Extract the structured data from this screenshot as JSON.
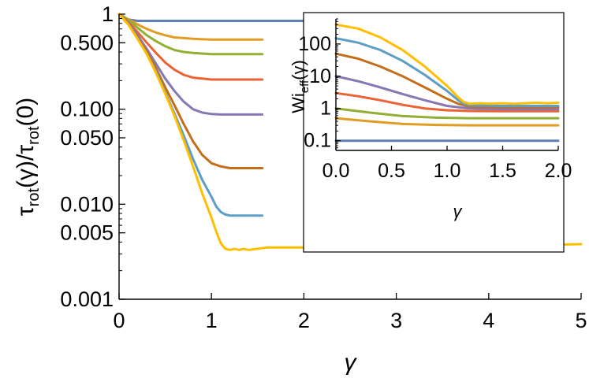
{
  "chart_data": [
    {
      "type": "line",
      "role": "main",
      "xlabel": "γ",
      "ylabel": "τrot(γ)/τrot(0)",
      "ylabel_parts": {
        "t1": "τ",
        "s1": "rot",
        "m": "(γ)/τ",
        "s2": "rot",
        "e": "(0)"
      },
      "x_scale": "linear",
      "y_scale": "log",
      "xlim": [
        0,
        5
      ],
      "ylim": [
        0.001,
        1
      ],
      "x_ticks": [
        0,
        1,
        2,
        3,
        4,
        5
      ],
      "x_tick_labels": [
        "0",
        "1",
        "2",
        "3",
        "4",
        "5"
      ],
      "y_ticks": [
        1,
        0.5,
        0.1,
        0.05,
        0.01,
        0.005,
        0.001
      ],
      "y_tick_labels": [
        "1",
        "0.500",
        "0.100",
        "0.050",
        "0.010",
        "0.005",
        "0.001"
      ],
      "series": [
        {
          "name": "s1",
          "color": "#5E81B5",
          "x": [
            0,
            0.1,
            0.2,
            0.3,
            2.0
          ],
          "y": [
            1,
            0.88,
            0.85,
            0.85,
            0.85
          ]
        },
        {
          "name": "s2",
          "color": "#E19C24",
          "x": [
            0,
            0.1,
            0.2,
            0.3,
            0.4,
            0.5,
            0.6,
            0.8,
            1.0,
            1.55
          ],
          "y": [
            1,
            0.88,
            0.78,
            0.7,
            0.64,
            0.6,
            0.57,
            0.55,
            0.54,
            0.54
          ]
        },
        {
          "name": "s3",
          "color": "#8FB032",
          "x": [
            0,
            0.1,
            0.2,
            0.3,
            0.4,
            0.5,
            0.6,
            0.7,
            0.8,
            1.0,
            1.55
          ],
          "y": [
            1,
            0.86,
            0.72,
            0.6,
            0.52,
            0.46,
            0.42,
            0.4,
            0.39,
            0.38,
            0.38
          ]
        },
        {
          "name": "s4",
          "color": "#EB6235",
          "x": [
            0,
            0.1,
            0.2,
            0.3,
            0.4,
            0.5,
            0.6,
            0.7,
            0.8,
            0.9,
            1.0,
            1.55
          ],
          "y": [
            1,
            0.82,
            0.65,
            0.5,
            0.39,
            0.31,
            0.26,
            0.23,
            0.215,
            0.21,
            0.205,
            0.205
          ]
        },
        {
          "name": "s5",
          "color": "#8778B3",
          "x": [
            0,
            0.1,
            0.2,
            0.3,
            0.4,
            0.5,
            0.6,
            0.7,
            0.8,
            0.9,
            1.0,
            1.1,
            1.55
          ],
          "y": [
            1,
            0.8,
            0.6,
            0.43,
            0.3,
            0.21,
            0.155,
            0.12,
            0.1,
            0.092,
            0.089,
            0.088,
            0.088
          ]
        },
        {
          "name": "s6",
          "color": "#C56E1A",
          "x": [
            0,
            0.1,
            0.2,
            0.3,
            0.4,
            0.5,
            0.6,
            0.7,
            0.8,
            0.9,
            1.0,
            1.1,
            1.2,
            1.3,
            1.55
          ],
          "y": [
            1,
            0.78,
            0.57,
            0.4,
            0.27,
            0.17,
            0.11,
            0.07,
            0.046,
            0.033,
            0.027,
            0.025,
            0.024,
            0.024,
            0.024
          ]
        },
        {
          "name": "s7",
          "color": "#5D9EC7",
          "x": [
            0,
            0.1,
            0.2,
            0.3,
            0.4,
            0.5,
            0.6,
            0.7,
            0.8,
            0.9,
            1.0,
            1.05,
            1.1,
            1.15,
            1.2,
            1.3,
            1.4,
            1.55
          ],
          "y": [
            1,
            0.78,
            0.56,
            0.38,
            0.25,
            0.15,
            0.09,
            0.053,
            0.03,
            0.018,
            0.012,
            0.0095,
            0.0083,
            0.0078,
            0.0076,
            0.0076,
            0.0076,
            0.0076
          ]
        },
        {
          "name": "s8",
          "color": "#FFBF00",
          "x": [
            0,
            0.1,
            0.2,
            0.3,
            0.4,
            0.5,
            0.6,
            0.7,
            0.8,
            0.9,
            1.0,
            1.05,
            1.1,
            1.15,
            1.2,
            1.25,
            1.3,
            1.35,
            1.4,
            1.5,
            1.6,
            1.8,
            2.0,
            2.5,
            3.0,
            3.5,
            4.0,
            4.5,
            5.0
          ],
          "y": [
            1,
            0.78,
            0.55,
            0.38,
            0.24,
            0.145,
            0.085,
            0.047,
            0.025,
            0.013,
            0.0072,
            0.0052,
            0.0039,
            0.0034,
            0.0033,
            0.0034,
            0.0033,
            0.0034,
            0.0033,
            0.0034,
            0.0035,
            0.0035,
            0.0035,
            0.0036,
            0.0036,
            0.0037,
            0.0037,
            0.0037,
            0.0038
          ]
        }
      ]
    },
    {
      "type": "line",
      "role": "inset",
      "xlabel": "γ",
      "ylabel": "Wieff(γ)",
      "ylabel_parts": {
        "t1": "Wi",
        "s1": "eff",
        "e": "(γ)"
      },
      "x_scale": "linear",
      "y_scale": "log",
      "xlim": [
        0,
        2
      ],
      "ylim": [
        0.05,
        600
      ],
      "x_ticks": [
        0,
        0.5,
        1,
        1.5,
        2
      ],
      "x_tick_labels": [
        "0.0",
        "0.5",
        "1.0",
        "1.5",
        "2.0"
      ],
      "y_ticks": [
        100,
        10,
        1,
        0.1
      ],
      "y_tick_labels": [
        "100",
        "10",
        "1",
        "0.1"
      ],
      "series": [
        {
          "name": "s1",
          "color": "#5E81B5",
          "x": [
            0,
            2.0
          ],
          "y": [
            0.1,
            0.1
          ]
        },
        {
          "name": "s2",
          "color": "#E19C24",
          "x": [
            0,
            0.3,
            0.6,
            0.9,
            1.2,
            1.5,
            2.0
          ],
          "y": [
            0.5,
            0.4,
            0.33,
            0.31,
            0.3,
            0.3,
            0.3
          ]
        },
        {
          "name": "s3",
          "color": "#8FB032",
          "x": [
            0,
            0.3,
            0.6,
            0.9,
            1.2,
            1.5,
            2.0
          ],
          "y": [
            1,
            0.75,
            0.58,
            0.52,
            0.5,
            0.5,
            0.5
          ]
        },
        {
          "name": "s4",
          "color": "#EB6235",
          "x": [
            0,
            0.2,
            0.4,
            0.6,
            0.8,
            1.0,
            1.2,
            1.5,
            2.0
          ],
          "y": [
            3,
            2.4,
            1.8,
            1.3,
            1.0,
            0.88,
            0.83,
            0.82,
            0.82
          ]
        },
        {
          "name": "s5",
          "color": "#8778B3",
          "x": [
            0,
            0.2,
            0.4,
            0.6,
            0.8,
            1.0,
            1.2,
            1.5,
            2.0
          ],
          "y": [
            10,
            7,
            4.5,
            2.8,
            1.8,
            1.2,
            1.0,
            0.95,
            0.95
          ]
        },
        {
          "name": "s6",
          "color": "#C56E1A",
          "x": [
            0,
            0.2,
            0.4,
            0.6,
            0.8,
            1.0,
            1.1,
            1.2,
            1.5,
            2.0
          ],
          "y": [
            50,
            35,
            20,
            10,
            4.5,
            2.0,
            1.4,
            1.15,
            1.1,
            1.1
          ]
        },
        {
          "name": "s7",
          "color": "#5D9EC7",
          "x": [
            0,
            0.2,
            0.4,
            0.6,
            0.8,
            1.0,
            1.1,
            1.15,
            1.2,
            1.5,
            2.0
          ],
          "y": [
            150,
            110,
            65,
            30,
            11,
            3.5,
            1.8,
            1.4,
            1.25,
            1.2,
            1.2
          ]
        },
        {
          "name": "s8",
          "color": "#FFBF00",
          "x": [
            0,
            0.2,
            0.4,
            0.6,
            0.8,
            1.0,
            1.1,
            1.15,
            1.2,
            1.3,
            1.4,
            1.5,
            1.6,
            1.7,
            1.8,
            1.9,
            2.0
          ],
          "y": [
            400,
            300,
            160,
            65,
            20,
            5,
            2.2,
            1.6,
            1.4,
            1.45,
            1.4,
            1.45,
            1.4,
            1.45,
            1.5,
            1.45,
            1.5
          ]
        }
      ]
    }
  ]
}
